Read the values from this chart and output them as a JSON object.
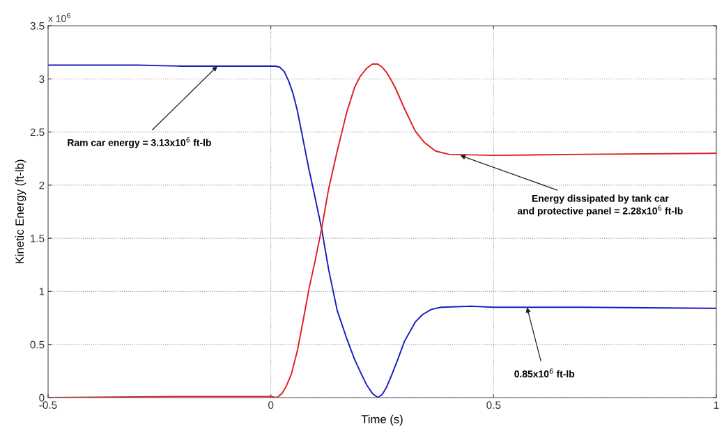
{
  "chart_data": {
    "type": "line",
    "xlabel": "Time (s)",
    "ylabel": "Kinetic Energy (ft-lb)",
    "xlim": [
      -0.5,
      1
    ],
    "xticks": [
      -0.5,
      0,
      0.5,
      1
    ],
    "ylim": [
      0,
      3.5
    ],
    "yticks": [
      0,
      0.5,
      1,
      1.5,
      2,
      2.5,
      3,
      3.5
    ],
    "grid": true,
    "line_style": "solid",
    "series": [
      {
        "color": "#1c1cc0",
        "x": [
          -0.5,
          -0.3,
          -0.2,
          0,
          0.01,
          0.02,
          0.03,
          0.04,
          0.05,
          0.059,
          0.07,
          0.085,
          0.1,
          0.114,
          0.13,
          0.149,
          0.17,
          0.188,
          0.2,
          0.215,
          0.228,
          0.24,
          0.25,
          0.26,
          0.272,
          0.285,
          0.3,
          0.324,
          0.34,
          0.36,
          0.382,
          0.45,
          0.5,
          0.7,
          1.0
        ],
        "values": [
          3.13,
          3.13,
          3.12,
          3.12,
          3.12,
          3.11,
          3.07,
          2.98,
          2.86,
          2.71,
          2.48,
          2.16,
          1.87,
          1.59,
          1.2,
          0.82,
          0.56,
          0.36,
          0.25,
          0.12,
          0.04,
          0.0,
          0.03,
          0.1,
          0.22,
          0.36,
          0.53,
          0.71,
          0.78,
          0.83,
          0.85,
          0.86,
          0.85,
          0.85,
          0.84
        ]
      },
      {
        "color": "#e02020",
        "x": [
          -0.5,
          -0.2,
          0,
          0.014,
          0.025,
          0.035,
          0.046,
          0.06,
          0.075,
          0.085,
          0.1,
          0.114,
          0.13,
          0.149,
          0.17,
          0.188,
          0.2,
          0.215,
          0.228,
          0.24,
          0.25,
          0.26,
          0.27,
          0.279,
          0.3,
          0.324,
          0.345,
          0.37,
          0.4,
          0.5,
          0.7,
          1.0
        ],
        "values": [
          0.0,
          0.01,
          0.01,
          0.0,
          0.04,
          0.11,
          0.22,
          0.45,
          0.78,
          1.01,
          1.3,
          1.59,
          1.97,
          2.32,
          2.68,
          2.92,
          3.02,
          3.1,
          3.14,
          3.14,
          3.11,
          3.06,
          2.99,
          2.92,
          2.72,
          2.51,
          2.4,
          2.32,
          2.29,
          2.28,
          2.29,
          2.3
        ]
      }
    ],
    "annotations": [
      "x 10$^{6}$",
      {
        "text": "Ram car energy = 3.13x10$^{6}$ ft-lb",
        "x": -0.12,
        "y": 3.12
      },
      {
        "text": "Energy dissipated by tank car\nand protective panel = 2.28x10$^{6}$ ft-lb",
        "x": 0.425,
        "y": 2.28
      },
      {
        "text": "0.85x10$^{6}$ ft-lb",
        "x": 0.575,
        "y": 0.85
      }
    ]
  }
}
